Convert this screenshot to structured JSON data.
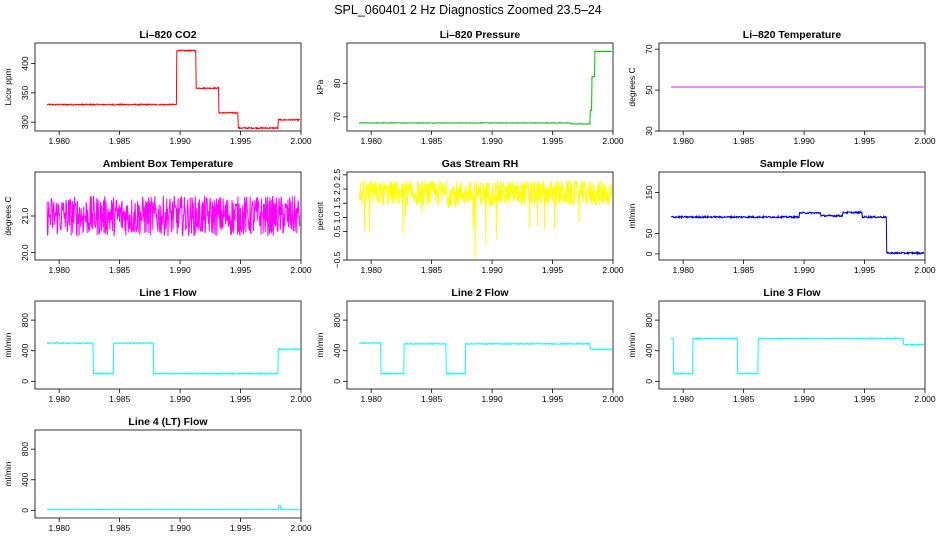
{
  "title": "SPL_060401  2 Hz Diagnostics Zoomed 23.5–24",
  "chart_data": [
    {
      "id": "co2",
      "type": "line",
      "title": "Li–820 CO2",
      "ylabel": "Licor ppm",
      "color": "#ff0000",
      "xlim": [
        1.978,
        2.0
      ],
      "ylim": [
        285,
        435
      ],
      "xticks": [
        "1.980",
        "1.985",
        "1.990",
        "1.995",
        "2.000"
      ],
      "xtick_values": [
        1.98,
        1.985,
        1.99,
        1.995,
        2.0
      ],
      "yticks": [
        "300",
        "350",
        "400"
      ],
      "ytick_values": [
        300,
        350,
        400
      ],
      "noise": 1.0,
      "steps": [
        [
          1.979,
          330
        ],
        [
          1.9897,
          422
        ],
        [
          1.9913,
          358
        ],
        [
          1.9932,
          316
        ],
        [
          1.9948,
          290
        ],
        [
          1.9981,
          304
        ],
        [
          1.9999,
          304
        ]
      ]
    },
    {
      "id": "pressure",
      "type": "line",
      "title": "Li–820 Pressure",
      "ylabel": "kPa",
      "color": "#00c000",
      "xlim": [
        1.978,
        2.0
      ],
      "ylim": [
        65.8,
        92
      ],
      "xticks": [
        "1.980",
        "1.985",
        "1.990",
        "1.995",
        "2.000"
      ],
      "xtick_values": [
        1.98,
        1.985,
        1.99,
        1.995,
        2.0
      ],
      "yticks": [
        "70",
        "80"
      ],
      "ytick_values": [
        70,
        80
      ],
      "noise": 0.08,
      "steps": [
        [
          1.979,
          68.2
        ],
        [
          1.9965,
          67.9
        ],
        [
          1.9981,
          72
        ],
        [
          1.99825,
          82
        ],
        [
          1.9985,
          89.5
        ],
        [
          1.9999,
          89.6
        ]
      ]
    },
    {
      "id": "temperature",
      "type": "line",
      "title": "Li–820 Temperature",
      "ylabel": "degrees C",
      "color": "#ff00ff",
      "xlim": [
        1.978,
        2.0
      ],
      "ylim": [
        30,
        73
      ],
      "xticks": [
        "1.980",
        "1.985",
        "1.990",
        "1.995",
        "2.000"
      ],
      "xtick_values": [
        1.98,
        1.985,
        1.99,
        1.995,
        2.0
      ],
      "yticks": [
        "30",
        "50",
        "70"
      ],
      "ytick_values": [
        30,
        50,
        70
      ],
      "noise": 0.0,
      "steps": [
        [
          1.979,
          51.5
        ],
        [
          1.9999,
          51.5
        ]
      ]
    },
    {
      "id": "box_temp",
      "type": "line",
      "title": "Ambient Box Temperature",
      "ylabel": "degrees C",
      "color": "#ff00ff",
      "xlim": [
        1.978,
        2.0
      ],
      "ylim": [
        19.8,
        22.2
      ],
      "xticks": [
        "1.980",
        "1.985",
        "1.990",
        "1.995",
        "2.000"
      ],
      "xtick_values": [
        1.98,
        1.985,
        1.99,
        1.995,
        2.0
      ],
      "yticks": [
        "20.0",
        "21.0"
      ],
      "ytick_values": [
        20.0,
        21.0
      ],
      "noise": 0.55,
      "steps": [
        [
          1.979,
          21.0
        ],
        [
          1.9999,
          21.0
        ]
      ]
    },
    {
      "id": "rh",
      "type": "line",
      "title": "Gas Stream RH",
      "ylabel": "percent",
      "color": "#ffff00",
      "xlim": [
        1.978,
        2.0
      ],
      "ylim": [
        -0.5,
        2.6
      ],
      "xticks": [
        "1.980",
        "1.985",
        "1.990",
        "1.995",
        "2.000"
      ],
      "xtick_values": [
        1.98,
        1.985,
        1.99,
        1.995,
        2.0
      ],
      "yticks": [
        "−0.5",
        "0.5",
        "1.0",
        "1.5",
        "2.0",
        "2.5"
      ],
      "ytick_values": [
        -0.5,
        0.5,
        1.0,
        1.5,
        2.0,
        2.5
      ],
      "noise": 0.45,
      "steps": [
        [
          1.979,
          1.85
        ],
        [
          1.9999,
          1.85
        ]
      ]
    },
    {
      "id": "sample_flow",
      "type": "line",
      "title": "Sample Flow",
      "ylabel": "ml/min",
      "color": "#0000cc",
      "xlim": [
        1.978,
        2.0
      ],
      "ylim": [
        -15,
        200
      ],
      "xticks": [
        "1.980",
        "1.985",
        "1.990",
        "1.995",
        "2.000"
      ],
      "xtick_values": [
        1.98,
        1.985,
        1.99,
        1.995,
        2.0
      ],
      "yticks": [
        "0",
        "50",
        "150"
      ],
      "ytick_values": [
        0,
        50,
        150
      ],
      "noise": 2.0,
      "steps": [
        [
          1.979,
          90
        ],
        [
          1.9896,
          100
        ],
        [
          1.9914,
          93
        ],
        [
          1.9932,
          101
        ],
        [
          1.9948,
          90
        ],
        [
          1.9968,
          2
        ],
        [
          1.9999,
          2
        ]
      ]
    },
    {
      "id": "line1",
      "type": "line",
      "title": "Line 1 Flow",
      "ylabel": "ml/min",
      "color": "#00ffff",
      "xlim": [
        1.978,
        2.0
      ],
      "ylim": [
        -100,
        1050
      ],
      "xticks": [
        "1.980",
        "1.985",
        "1.990",
        "1.995",
        "2.000"
      ],
      "xtick_values": [
        1.98,
        1.985,
        1.99,
        1.995,
        2.0
      ],
      "yticks": [
        "0",
        "400",
        "800"
      ],
      "ytick_values": [
        0,
        400,
        800
      ],
      "noise": 6,
      "steps": [
        [
          1.979,
          500
        ],
        [
          1.9828,
          100
        ],
        [
          1.9845,
          500
        ],
        [
          1.9878,
          100
        ],
        [
          1.9981,
          420
        ],
        [
          1.9999,
          430
        ]
      ]
    },
    {
      "id": "line2",
      "type": "line",
      "title": "Line 2 Flow",
      "ylabel": "ml/min",
      "color": "#00ffff",
      "xlim": [
        1.978,
        2.0
      ],
      "ylim": [
        -100,
        1050
      ],
      "xticks": [
        "1.980",
        "1.985",
        "1.990",
        "1.995",
        "2.000"
      ],
      "xtick_values": [
        1.98,
        1.985,
        1.99,
        1.995,
        2.0
      ],
      "yticks": [
        "0",
        "400",
        "800"
      ],
      "ytick_values": [
        0,
        400,
        800
      ],
      "noise": 6,
      "steps": [
        [
          1.979,
          500
        ],
        [
          1.9808,
          100
        ],
        [
          1.9827,
          490
        ],
        [
          1.9862,
          100
        ],
        [
          1.9878,
          490
        ],
        [
          1.9981,
          420
        ],
        [
          1.9999,
          430
        ]
      ]
    },
    {
      "id": "line3",
      "type": "line",
      "title": "Line 3 Flow",
      "ylabel": "ml/min",
      "color": "#00ffff",
      "xlim": [
        1.978,
        2.0
      ],
      "ylim": [
        -100,
        1050
      ],
      "xticks": [
        "1.980",
        "1.985",
        "1.990",
        "1.995",
        "2.000"
      ],
      "xtick_values": [
        1.98,
        1.985,
        1.99,
        1.995,
        2.0
      ],
      "yticks": [
        "0",
        "400",
        "800"
      ],
      "ytick_values": [
        0,
        400,
        800
      ],
      "noise": 6,
      "steps": [
        [
          1.979,
          560
        ],
        [
          1.9792,
          100
        ],
        [
          1.9808,
          560
        ],
        [
          1.9845,
          100
        ],
        [
          1.9862,
          560
        ],
        [
          1.9982,
          480
        ],
        [
          1.9999,
          470
        ]
      ]
    },
    {
      "id": "line4",
      "type": "line",
      "title": "Line 4 (LT) Flow",
      "ylabel": "ml/min",
      "color": "#00ffff",
      "xlim": [
        1.978,
        2.0
      ],
      "ylim": [
        -100,
        1050
      ],
      "xticks": [
        "1.980",
        "1.985",
        "1.990",
        "1.995",
        "2.000"
      ],
      "xtick_values": [
        1.98,
        1.985,
        1.99,
        1.995,
        2.0
      ],
      "yticks": [
        "0",
        "400",
        "800"
      ],
      "ytick_values": [
        0,
        400,
        800
      ],
      "noise": 2,
      "steps": [
        [
          1.979,
          10
        ],
        [
          1.99815,
          60
        ],
        [
          1.9983,
          10
        ],
        [
          1.9999,
          10
        ]
      ]
    }
  ]
}
